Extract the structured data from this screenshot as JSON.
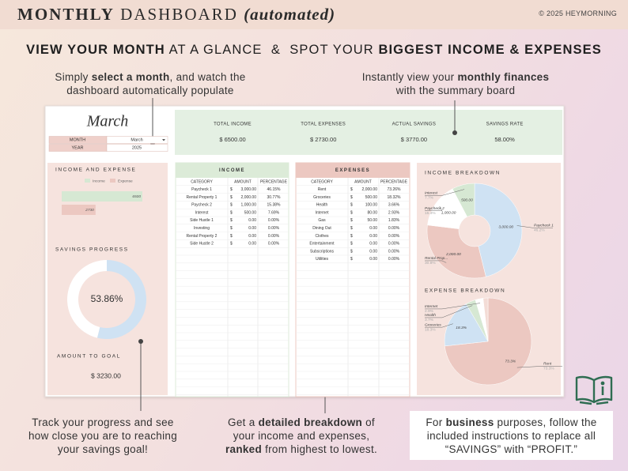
{
  "header": {
    "title_bold": "MONTHLY",
    "title_light": "DASHBOARD",
    "title_italic": "(automated)",
    "copyright": "© 2025 HEYMORNING"
  },
  "headline": [
    {
      "text": "VIEW YOUR MONTH",
      "bold": true
    },
    {
      "text": " AT A GLANCE  &  SPOT YOUR ",
      "bold": false
    },
    {
      "text": "BIGGEST INCOME & EXPENSES",
      "bold": true
    }
  ],
  "callouts": [
    {
      "lines": [
        [
          {
            "text": "Simply ",
            "bold": false
          },
          {
            "text": "select a month",
            "bold": true
          },
          {
            "text": ", and watch the",
            "bold": false
          }
        ],
        [
          {
            "text": "dashboard automatically populate",
            "bold": false
          }
        ]
      ]
    },
    {
      "lines": [
        [
          {
            "text": "Instantly view your ",
            "bold": false
          },
          {
            "text": "monthly finances",
            "bold": true
          }
        ],
        [
          {
            "text": "with the summary board",
            "bold": false
          }
        ]
      ]
    },
    {
      "lines": [
        [
          {
            "text": "Track your progress and see",
            "bold": false
          }
        ],
        [
          {
            "text": "how close you are to reaching",
            "bold": false
          }
        ],
        [
          {
            "text": "your savings goal!",
            "bold": false
          }
        ]
      ]
    },
    {
      "lines": [
        [
          {
            "text": "Get a ",
            "bold": false
          },
          {
            "text": "detailed breakdown",
            "bold": true
          },
          {
            "text": " of",
            "bold": false
          }
        ],
        [
          {
            "text": "your income and expenses,",
            "bold": false
          }
        ],
        [
          {
            "text": "ranked",
            "bold": true
          },
          {
            "text": " from highest to lowest.",
            "bold": false
          }
        ]
      ]
    },
    {
      "lines": [
        [
          {
            "text": "For ",
            "bold": false
          },
          {
            "text": "business",
            "bold": true
          },
          {
            "text": " purposes, follow the",
            "bold": false
          }
        ],
        [
          {
            "text": "included instructions to replace all",
            "bold": false
          }
        ],
        [
          {
            "text": "“SAVINGS” with “PROFIT.”",
            "bold": false
          }
        ]
      ]
    }
  ],
  "month_selector": {
    "month_title": "March",
    "rows": [
      [
        "MONTH",
        "March"
      ],
      [
        "YEAR",
        "2025"
      ]
    ]
  },
  "summary": [
    {
      "label": "TOTAL INCOME",
      "value": "$ 6500.00"
    },
    {
      "label": "TOTAL EXPENSES",
      "value": "$ 2730.00"
    },
    {
      "label": "ACTUAL SAVINGS",
      "value": "$ 3770.00"
    },
    {
      "label": "SAVINGS RATE",
      "value": "58.00%"
    }
  ],
  "income_expense": {
    "title": "INCOME AND EXPENSE",
    "legend": [
      "Income",
      "Expense"
    ],
    "colors": [
      "#d6e8d3",
      "#ecc8c1"
    ],
    "values": [
      6500,
      2730
    ]
  },
  "savings_progress": {
    "title": "SAVINGS PROGRESS",
    "value": 53.86,
    "value_label": "53.86%",
    "color": "#cfe2f3",
    "goal_label": "AMOUNT TO GOAL",
    "goal_value": "$ 3230.00"
  },
  "income_table": {
    "title": "INCOME",
    "color": "#dcebd8",
    "columns": [
      "CATEGORY",
      "AMOUNT",
      "PERCENTAGE"
    ],
    "rows": [
      [
        "Paycheck 1",
        "$",
        "3,000.00",
        "46.15%"
      ],
      [
        "Rental Property 1",
        "$",
        "2,000.00",
        "30.77%"
      ],
      [
        "Paycheck 2",
        "$",
        "1,000.00",
        "15.38%"
      ],
      [
        "Interest",
        "$",
        "500.00",
        "7.69%"
      ],
      [
        "Side Hustle 1",
        "$",
        "0.00",
        "0.00%"
      ],
      [
        "Investing",
        "$",
        "0.00",
        "0.00%"
      ],
      [
        "Rental Property 2",
        "$",
        "0.00",
        "0.00%"
      ],
      [
        "Side Hustle 2",
        "$",
        "0.00",
        "0.00%"
      ]
    ]
  },
  "expense_table": {
    "title": "EXPENSES",
    "color": "#ecc8c1",
    "columns": [
      "CATEGORY",
      "AMOUNT",
      "PERCENTAGE"
    ],
    "rows": [
      [
        "Rent",
        "$",
        "2,000.00",
        "73.26%"
      ],
      [
        "Groceries",
        "$",
        "500.00",
        "18.32%"
      ],
      [
        "Health",
        "$",
        "100.00",
        "3.66%"
      ],
      [
        "Internet",
        "$",
        "80.00",
        "2.93%"
      ],
      [
        "Gas",
        "$",
        "50.00",
        "1.83%"
      ],
      [
        "Dining Out",
        "$",
        "0.00",
        "0.00%"
      ],
      [
        "Clothes",
        "$",
        "0.00",
        "0.00%"
      ],
      [
        "Entertainment",
        "$",
        "0.00",
        "0.00%"
      ],
      [
        "Subscriptions",
        "$",
        "0.00",
        "0.00%"
      ],
      [
        "Utilities",
        "$",
        "0.00",
        "0.00%"
      ]
    ]
  },
  "income_breakdown": {
    "type": "pie",
    "title": "INCOME BREAKDOWN",
    "slices": [
      {
        "name": "Paycheck 1",
        "value": 3000,
        "value_label": "3,000.00",
        "percent_label": "46.2%",
        "color": "#cfe2f3"
      },
      {
        "name": "Rental Prop...",
        "value": 2000,
        "value_label": "2,000.00",
        "percent_label": "30.8%",
        "color": "#ecc8c1"
      },
      {
        "name": "Paycheck 2",
        "value": 1000,
        "value_label": "1,000.00",
        "percent_label": "15.4%",
        "color": "#ffffff"
      },
      {
        "name": "Interest",
        "value": 500,
        "value_label": "500.00",
        "percent_label": "7.7%",
        "color": "#d6e8d3"
      }
    ]
  },
  "expense_breakdown": {
    "type": "pie",
    "title": "EXPENSE BREAKDOWN",
    "slices": [
      {
        "name": "Rent",
        "value": 73.3,
        "value_label": "73.3%",
        "color": "#ecc8c1"
      },
      {
        "name": "Groceries",
        "value": 18.3,
        "value_label": "18.3%",
        "color": "#cfe2f3"
      },
      {
        "name": "Health",
        "value": 3.7,
        "value_label": "3.7%",
        "color": "#d6e8d3"
      },
      {
        "name": "Internet",
        "value": 2.9,
        "value_label": "2.9%",
        "color": "#ffffff"
      },
      {
        "name": null,
        "value": 1.8,
        "value_label": null,
        "color": "#f3dcd6"
      }
    ]
  }
}
